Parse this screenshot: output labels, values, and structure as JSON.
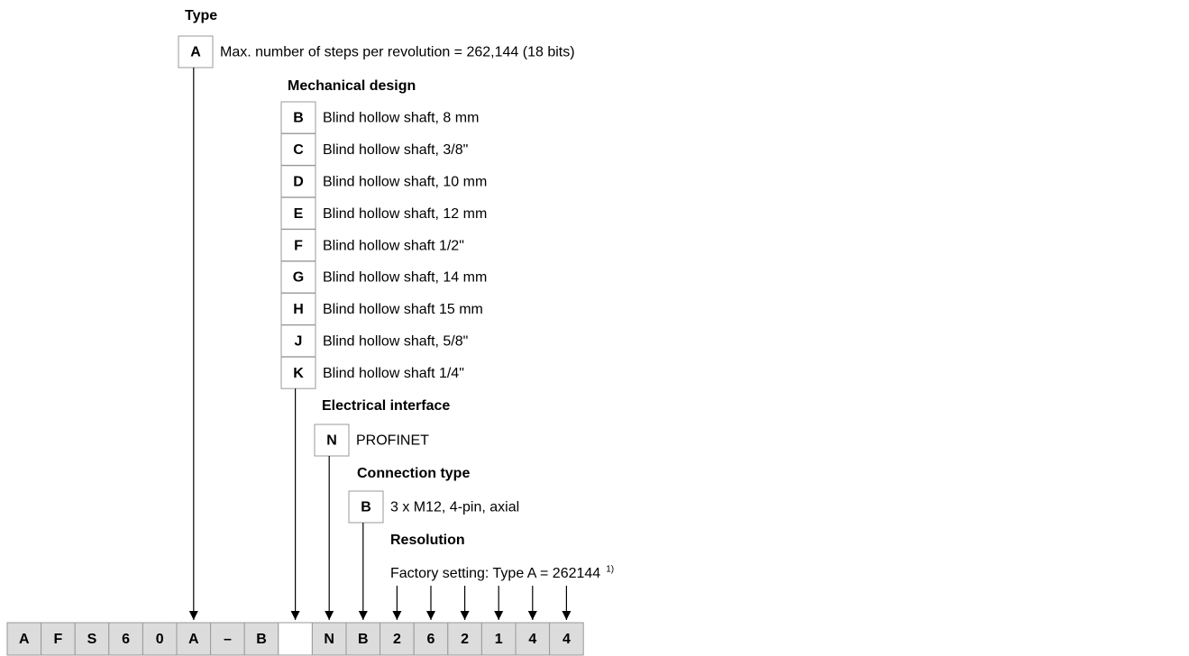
{
  "sections": [
    {
      "title": "Type",
      "options": [
        {
          "code": "A",
          "label": "Max. number of steps per revolution = 262,144 (18 bits)"
        }
      ]
    },
    {
      "title": "Mechanical design",
      "options": [
        {
          "code": "B",
          "label": "Blind hollow shaft, 8 mm"
        },
        {
          "code": "C",
          "label": "Blind hollow shaft, 3/8\""
        },
        {
          "code": "D",
          "label": "Blind hollow shaft, 10 mm"
        },
        {
          "code": "E",
          "label": "Blind hollow shaft, 12 mm"
        },
        {
          "code": "F",
          "label": "Blind hollow shaft 1/2\""
        },
        {
          "code": "G",
          "label": "Blind hollow shaft, 14 mm"
        },
        {
          "code": "H",
          "label": "Blind hollow shaft 15 mm"
        },
        {
          "code": "J",
          "label": "Blind hollow shaft, 5/8\""
        },
        {
          "code": "K",
          "label": "Blind hollow shaft 1/4\""
        }
      ]
    },
    {
      "title": "Electrical interface",
      "options": [
        {
          "code": "N",
          "label": "PROFINET"
        }
      ]
    },
    {
      "title": "Connection type",
      "options": [
        {
          "code": "B",
          "label": "3 x M12, 4-pin, axial"
        }
      ]
    }
  ],
  "resolution": {
    "title": "Resolution",
    "text": "Factory setting: Type A = 262144",
    "footnote": "1)"
  },
  "code_row": [
    "A",
    "F",
    "S",
    "6",
    "0",
    "A",
    "–",
    "B",
    null,
    "N",
    "B",
    "2",
    "6",
    "2",
    "1",
    "4",
    "4"
  ]
}
